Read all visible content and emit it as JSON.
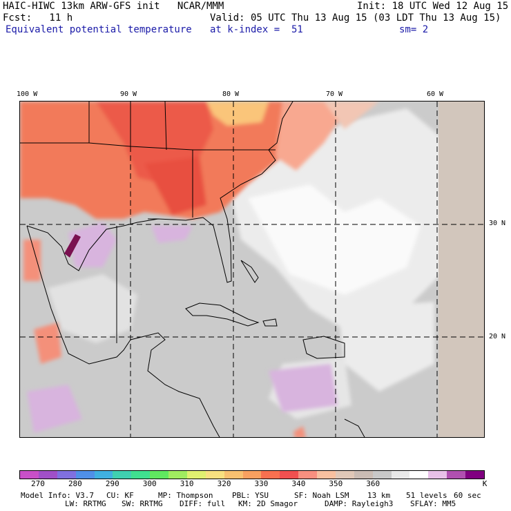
{
  "header": {
    "model_title": "HAIC-HIWC 13km ARW-GFS init   NCAR/MMM",
    "init": "Init: 18 UTC Wed 12 Aug 15",
    "fcst": "Fcst:   11 h",
    "valid": "Valid: 05 UTC Thu 13 Aug 15 (03 LDT Thu 13 Aug 15)",
    "field_name": "Equivalent potential temperature",
    "level": "at k-index =  51",
    "smoothing": "sm= 2"
  },
  "map": {
    "lon_labels": [
      "100 W",
      "90 W",
      "80 W",
      "70 W",
      "60 W"
    ],
    "lat_labels": [
      "30 N",
      "20 N"
    ]
  },
  "colorbar": {
    "colors": [
      "#c850c8",
      "#a050c8",
      "#8070e0",
      "#5090e8",
      "#40b0e0",
      "#40d0b0",
      "#40e090",
      "#60e860",
      "#a0ec60",
      "#e0f070",
      "#f8e080",
      "#f8c070",
      "#f8a060",
      "#f87050",
      "#f05050",
      "#f89080",
      "#f8c0a0",
      "#e0c8b8",
      "#cabcb4",
      "#c8c8c8",
      "#e8e8e8",
      "#ffffff",
      "#e8c0e8",
      "#b050b0",
      "#800080"
    ],
    "tick_labels": [
      "270",
      "280",
      "290",
      "300",
      "310",
      "320",
      "330",
      "340",
      "350",
      "360"
    ],
    "unit": "K"
  },
  "footer": {
    "line1": [
      "Model Info: V3.7",
      "CU: KF",
      "MP: Thompson",
      "PBL: YSU",
      "SF: Noah LSM",
      "13 km",
      "51 levels",
      "60 sec"
    ],
    "line2": [
      "LW: RRTMG",
      "SW: RRTMG",
      "DIFF: full",
      "KM: 2D Smagor",
      "DAMP: Rayleigh3",
      "SFLAY: MM5"
    ]
  }
}
